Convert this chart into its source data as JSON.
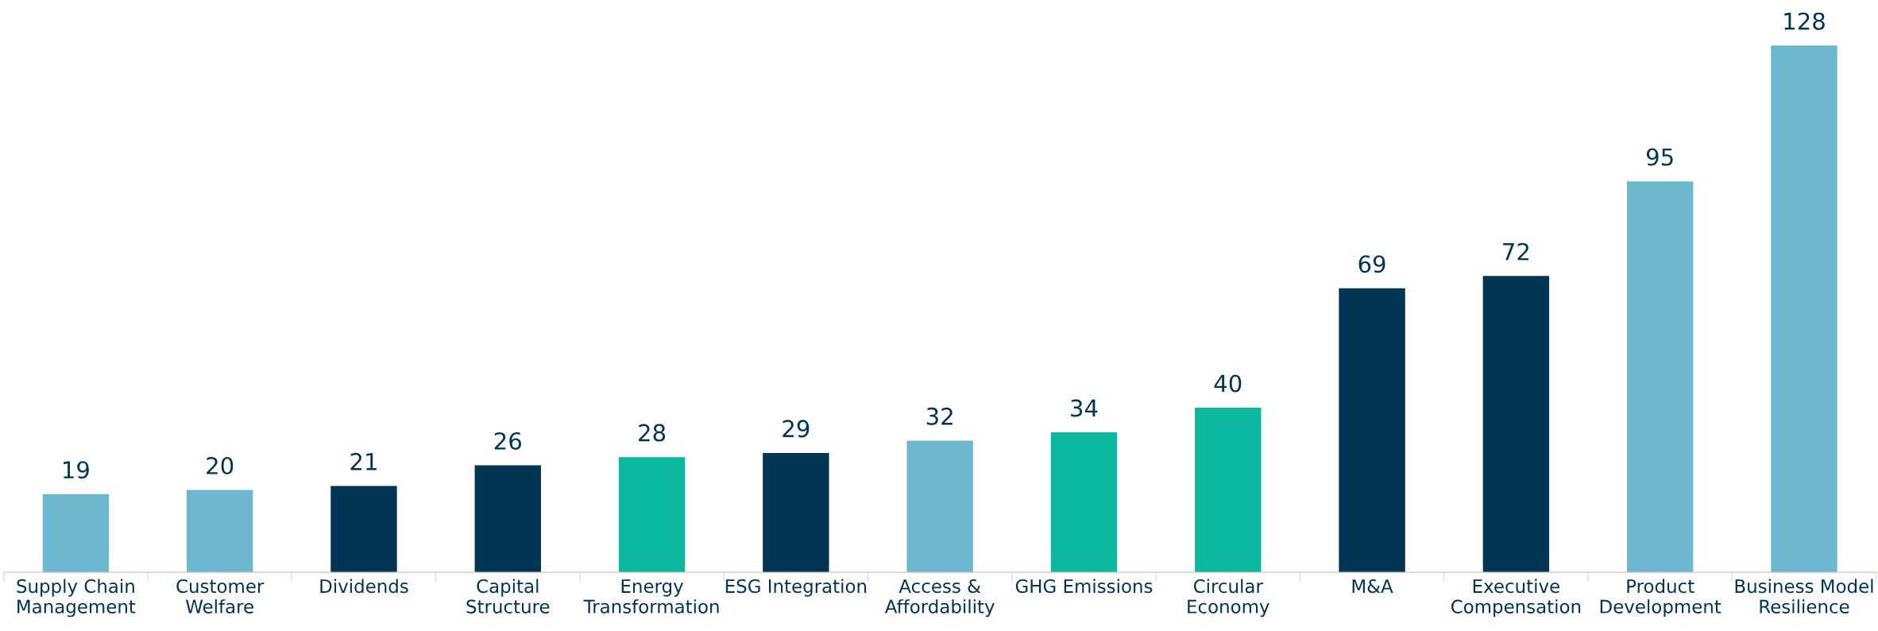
{
  "chart_data": {
    "type": "bar",
    "categories": [
      "Supply Chain\nManagement",
      "Customer\nWelfare",
      "Dividends",
      "Capital\nStructure",
      "Energy\nTransformation",
      "ESG Integration",
      "Access &\nAffordability",
      "GHG Emissions",
      "Circular\nEconomy",
      "M&A",
      "Executive\nCompensation",
      "Product\nDevelopment",
      "Business Model\nResilience"
    ],
    "values": [
      19,
      20,
      21,
      26,
      28,
      29,
      32,
      34,
      40,
      69,
      72,
      95,
      128
    ],
    "colors": [
      "#6db8cf",
      "#6db8cf",
      "#023553",
      "#023553",
      "#0bb89e",
      "#023553",
      "#6db8cf",
      "#0bb89e",
      "#0bb89e",
      "#023553",
      "#023553",
      "#6db8cf",
      "#6db8cf"
    ],
    "data_labels": true,
    "grid": false,
    "legend": false
  }
}
